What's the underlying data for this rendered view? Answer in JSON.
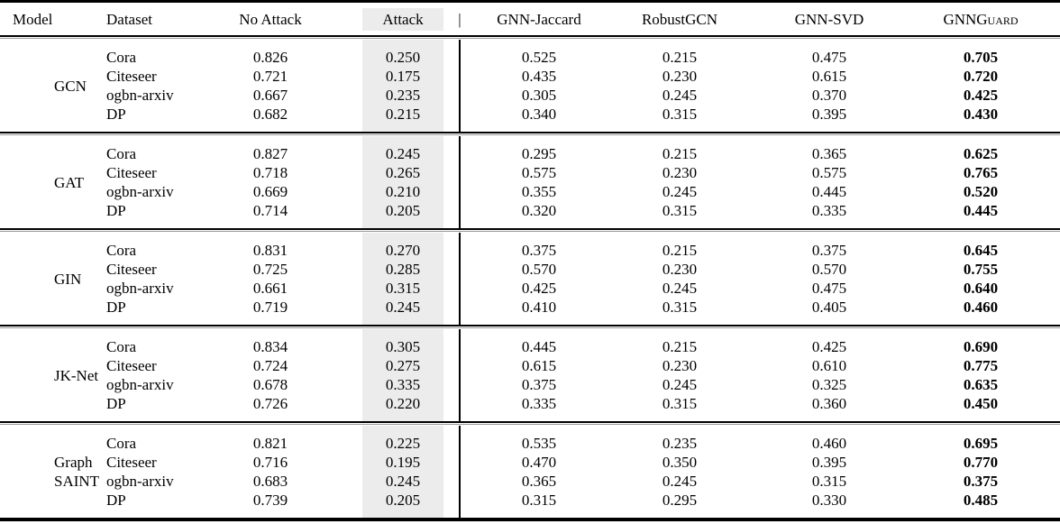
{
  "table": {
    "highlight_color": "#ececec",
    "columns": {
      "model": "Model",
      "dataset": "Dataset",
      "no_attack": "No Attack",
      "attack": "Attack",
      "separator": "|",
      "jaccard": "GNN-Jaccard",
      "robustgcn": "RobustGCN",
      "svd": "GNN-SVD",
      "guard_main": "GNN",
      "guard_caps": "Guard"
    },
    "groups": [
      {
        "model": "GCN",
        "rows": [
          {
            "dataset": "Cora",
            "no_attack": "0.826",
            "attack": "0.250",
            "jaccard": "0.525",
            "robustgcn": "0.215",
            "svd": "0.475",
            "guard": "0.705"
          },
          {
            "dataset": "Citeseer",
            "no_attack": "0.721",
            "attack": "0.175",
            "jaccard": "0.435",
            "robustgcn": "0.230",
            "svd": "0.615",
            "guard": "0.720"
          },
          {
            "dataset": "ogbn-arxiv",
            "no_attack": "0.667",
            "attack": "0.235",
            "jaccard": "0.305",
            "robustgcn": "0.245",
            "svd": "0.370",
            "guard": "0.425"
          },
          {
            "dataset": "DP",
            "no_attack": "0.682",
            "attack": "0.215",
            "jaccard": "0.340",
            "robustgcn": "0.315",
            "svd": "0.395",
            "guard": "0.430"
          }
        ]
      },
      {
        "model": "GAT",
        "rows": [
          {
            "dataset": "Cora",
            "no_attack": "0.827",
            "attack": "0.245",
            "jaccard": "0.295",
            "robustgcn": "0.215",
            "svd": "0.365",
            "guard": "0.625"
          },
          {
            "dataset": "Citeseer",
            "no_attack": "0.718",
            "attack": "0.265",
            "jaccard": "0.575",
            "robustgcn": "0.230",
            "svd": "0.575",
            "guard": "0.765"
          },
          {
            "dataset": "ogbn-arxiv",
            "no_attack": "0.669",
            "attack": "0.210",
            "jaccard": "0.355",
            "robustgcn": "0.245",
            "svd": "0.445",
            "guard": "0.520"
          },
          {
            "dataset": "DP",
            "no_attack": "0.714",
            "attack": "0.205",
            "jaccard": "0.320",
            "robustgcn": "0.315",
            "svd": "0.335",
            "guard": "0.445"
          }
        ]
      },
      {
        "model": "GIN",
        "rows": [
          {
            "dataset": "Cora",
            "no_attack": "0.831",
            "attack": "0.270",
            "jaccard": "0.375",
            "robustgcn": "0.215",
            "svd": "0.375",
            "guard": "0.645"
          },
          {
            "dataset": "Citeseer",
            "no_attack": "0.725",
            "attack": "0.285",
            "jaccard": "0.570",
            "robustgcn": "0.230",
            "svd": "0.570",
            "guard": "0.755"
          },
          {
            "dataset": "ogbn-arxiv",
            "no_attack": "0.661",
            "attack": "0.315",
            "jaccard": "0.425",
            "robustgcn": "0.245",
            "svd": "0.475",
            "guard": "0.640"
          },
          {
            "dataset": "DP",
            "no_attack": "0.719",
            "attack": "0.245",
            "jaccard": "0.410",
            "robustgcn": "0.315",
            "svd": "0.405",
            "guard": "0.460"
          }
        ]
      },
      {
        "model": "JK-Net",
        "rows": [
          {
            "dataset": "Cora",
            "no_attack": "0.834",
            "attack": "0.305",
            "jaccard": "0.445",
            "robustgcn": "0.215",
            "svd": "0.425",
            "guard": "0.690"
          },
          {
            "dataset": "Citeseer",
            "no_attack": "0.724",
            "attack": "0.275",
            "jaccard": "0.615",
            "robustgcn": "0.230",
            "svd": "0.610",
            "guard": "0.775"
          },
          {
            "dataset": "ogbn-arxiv",
            "no_attack": "0.678",
            "attack": "0.335",
            "jaccard": "0.375",
            "robustgcn": "0.245",
            "svd": "0.325",
            "guard": "0.635"
          },
          {
            "dataset": "DP",
            "no_attack": "0.726",
            "attack": "0.220",
            "jaccard": "0.335",
            "robustgcn": "0.315",
            "svd": "0.360",
            "guard": "0.450"
          }
        ]
      },
      {
        "model": "Graph\nSAINT",
        "rows": [
          {
            "dataset": "Cora",
            "no_attack": "0.821",
            "attack": "0.225",
            "jaccard": "0.535",
            "robustgcn": "0.235",
            "svd": "0.460",
            "guard": "0.695"
          },
          {
            "dataset": "Citeseer",
            "no_attack": "0.716",
            "attack": "0.195",
            "jaccard": "0.470",
            "robustgcn": "0.350",
            "svd": "0.395",
            "guard": "0.770"
          },
          {
            "dataset": "ogbn-arxiv",
            "no_attack": "0.683",
            "attack": "0.245",
            "jaccard": "0.365",
            "robustgcn": "0.245",
            "svd": "0.315",
            "guard": "0.375"
          },
          {
            "dataset": "DP",
            "no_attack": "0.739",
            "attack": "0.205",
            "jaccard": "0.315",
            "robustgcn": "0.295",
            "svd": "0.330",
            "guard": "0.485"
          }
        ]
      }
    ]
  }
}
